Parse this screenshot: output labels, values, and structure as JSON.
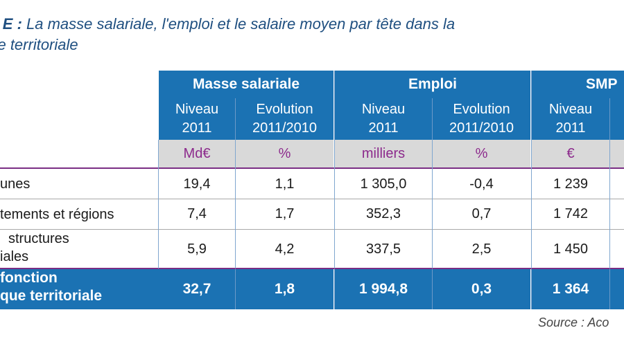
{
  "caption": {
    "label": "au E :",
    "line1_rest": " La masse salariale, l'emploi et le salaire moyen par tête dans la",
    "line2": "que territoriale"
  },
  "table": {
    "groups": [
      "Masse salariale",
      "Emploi",
      "SMP"
    ],
    "subheaders": [
      {
        "line1": "Niveau",
        "line2": "2011"
      },
      {
        "line1": "Evolution",
        "line2": "2011/2010"
      },
      {
        "line1": "Niveau",
        "line2": "2011"
      },
      {
        "line1": "Evolution",
        "line2": "2011/2010"
      },
      {
        "line1": "Niveau",
        "line2": "2011"
      }
    ],
    "units": [
      "Md€",
      "%",
      "milliers",
      "%",
      "€"
    ],
    "rows": [
      {
        "label_line1": "unes",
        "label_line2": "",
        "values": [
          "19,4",
          "1,1",
          "1 305,0",
          "-0,4",
          "1 239"
        ]
      },
      {
        "label_line1": "tements et régions",
        "label_line2": "",
        "values": [
          "7,4",
          "1,7",
          "352,3",
          "0,7",
          "1 742"
        ]
      },
      {
        "label_line1": "structures",
        "label_line2": "iales",
        "values": [
          "5,9",
          "4,2",
          "337,5",
          "2,5",
          "1 450"
        ]
      }
    ],
    "total": {
      "label_line1": "fonction",
      "label_line2": "que territoriale",
      "values": [
        "32,7",
        "1,8",
        "1 994,8",
        "0,3",
        "1 364"
      ]
    }
  },
  "source": "Source : Aco"
}
